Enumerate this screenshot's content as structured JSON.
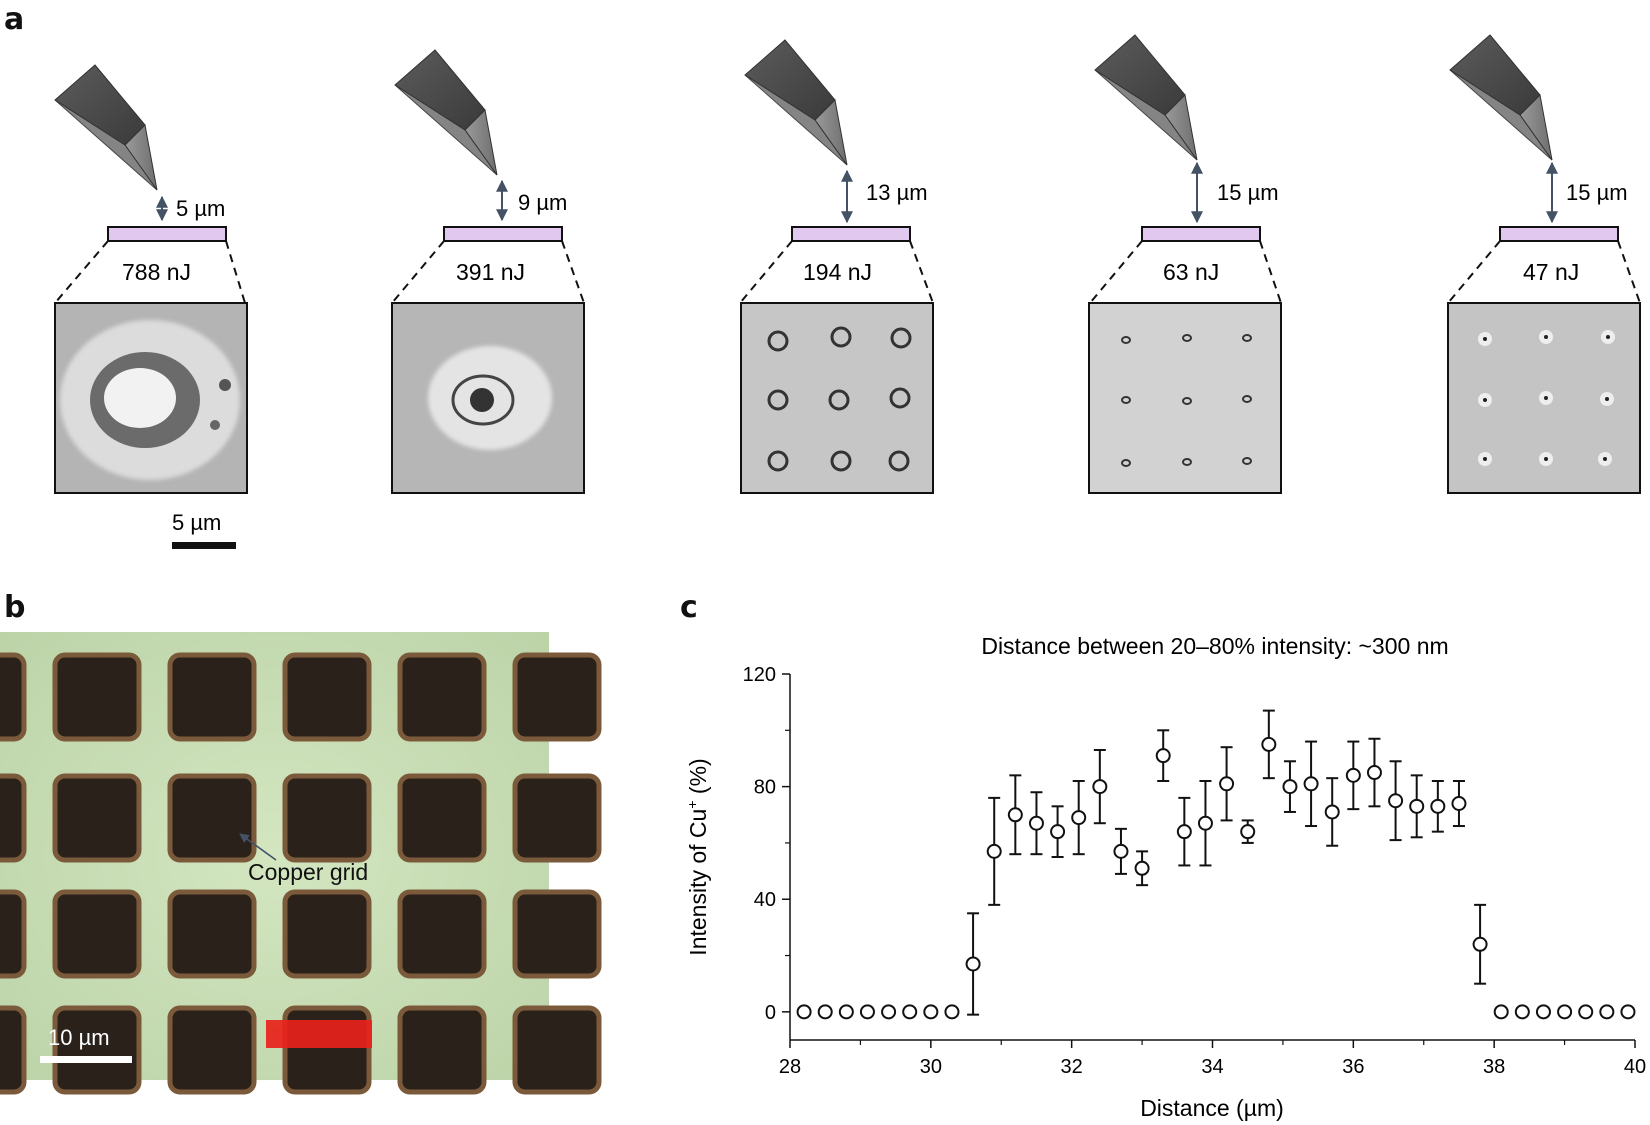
{
  "panels": {
    "a": "a",
    "b": "b",
    "c": "c"
  },
  "panel_a": {
    "items": [
      {
        "gap": "5 µm",
        "energy": "788 nJ"
      },
      {
        "gap": "9 µm",
        "energy": "391 nJ"
      },
      {
        "gap": "13 µm",
        "energy": "194 nJ"
      },
      {
        "gap": "15 µm",
        "energy": "63 nJ"
      },
      {
        "gap": "15 µm",
        "energy": "47 nJ"
      }
    ],
    "scalebar": "5 µm"
  },
  "panel_b": {
    "annotation": "Copper grid",
    "scalebar": "10 µm",
    "colors": {
      "background": "#c9ddb5",
      "square": "#2a211b",
      "highlight": "#e8221b"
    }
  },
  "chart_data": {
    "type": "scatter",
    "title": "Distance between 20–80% intensity: ~300 nm",
    "xlabel": "Distance (µm)",
    "ylabel": "Intensity of Cu+ (%)",
    "xlim": [
      28,
      40
    ],
    "ylim": [
      -10,
      120
    ],
    "xticks": [
      28,
      30,
      32,
      34,
      36,
      38,
      40
    ],
    "yticks": [
      0,
      40,
      80,
      120
    ],
    "marker": "open-circle",
    "points": [
      {
        "x": 28.2,
        "y": 0,
        "err": 0
      },
      {
        "x": 28.5,
        "y": 0,
        "err": 0
      },
      {
        "x": 28.8,
        "y": 0,
        "err": 0
      },
      {
        "x": 29.1,
        "y": 0,
        "err": 0
      },
      {
        "x": 29.4,
        "y": 0,
        "err": 0
      },
      {
        "x": 29.7,
        "y": 0,
        "err": 0
      },
      {
        "x": 30.0,
        "y": 0,
        "err": 0
      },
      {
        "x": 30.3,
        "y": 0,
        "err": 0
      },
      {
        "x": 30.6,
        "y": 17,
        "err": 18
      },
      {
        "x": 30.9,
        "y": 57,
        "err": 19
      },
      {
        "x": 31.2,
        "y": 70,
        "err": 14
      },
      {
        "x": 31.5,
        "y": 67,
        "err": 11
      },
      {
        "x": 31.8,
        "y": 64,
        "err": 9
      },
      {
        "x": 32.1,
        "y": 69,
        "err": 13
      },
      {
        "x": 32.4,
        "y": 80,
        "err": 13
      },
      {
        "x": 32.7,
        "y": 57,
        "err": 8
      },
      {
        "x": 33.0,
        "y": 51,
        "err": 6
      },
      {
        "x": 33.3,
        "y": 91,
        "err": 9
      },
      {
        "x": 33.6,
        "y": 64,
        "err": 12
      },
      {
        "x": 33.9,
        "y": 67,
        "err": 15
      },
      {
        "x": 34.2,
        "y": 81,
        "err": 13
      },
      {
        "x": 34.5,
        "y": 64,
        "err": 4
      },
      {
        "x": 34.8,
        "y": 95,
        "err": 12
      },
      {
        "x": 35.1,
        "y": 80,
        "err": 9
      },
      {
        "x": 35.4,
        "y": 81,
        "err": 15
      },
      {
        "x": 35.7,
        "y": 71,
        "err": 12
      },
      {
        "x": 36.0,
        "y": 84,
        "err": 12
      },
      {
        "x": 36.3,
        "y": 85,
        "err": 12
      },
      {
        "x": 36.6,
        "y": 75,
        "err": 14
      },
      {
        "x": 36.9,
        "y": 73,
        "err": 11
      },
      {
        "x": 37.2,
        "y": 73,
        "err": 9
      },
      {
        "x": 37.5,
        "y": 74,
        "err": 8
      },
      {
        "x": 37.8,
        "y": 24,
        "err": 14
      },
      {
        "x": 38.1,
        "y": 0,
        "err": 0
      },
      {
        "x": 38.4,
        "y": 0,
        "err": 0
      },
      {
        "x": 38.7,
        "y": 0,
        "err": 0
      },
      {
        "x": 39.0,
        "y": 0,
        "err": 0
      },
      {
        "x": 39.3,
        "y": 0,
        "err": 0
      },
      {
        "x": 39.6,
        "y": 0,
        "err": 0
      },
      {
        "x": 39.9,
        "y": 0,
        "err": 0
      }
    ]
  }
}
